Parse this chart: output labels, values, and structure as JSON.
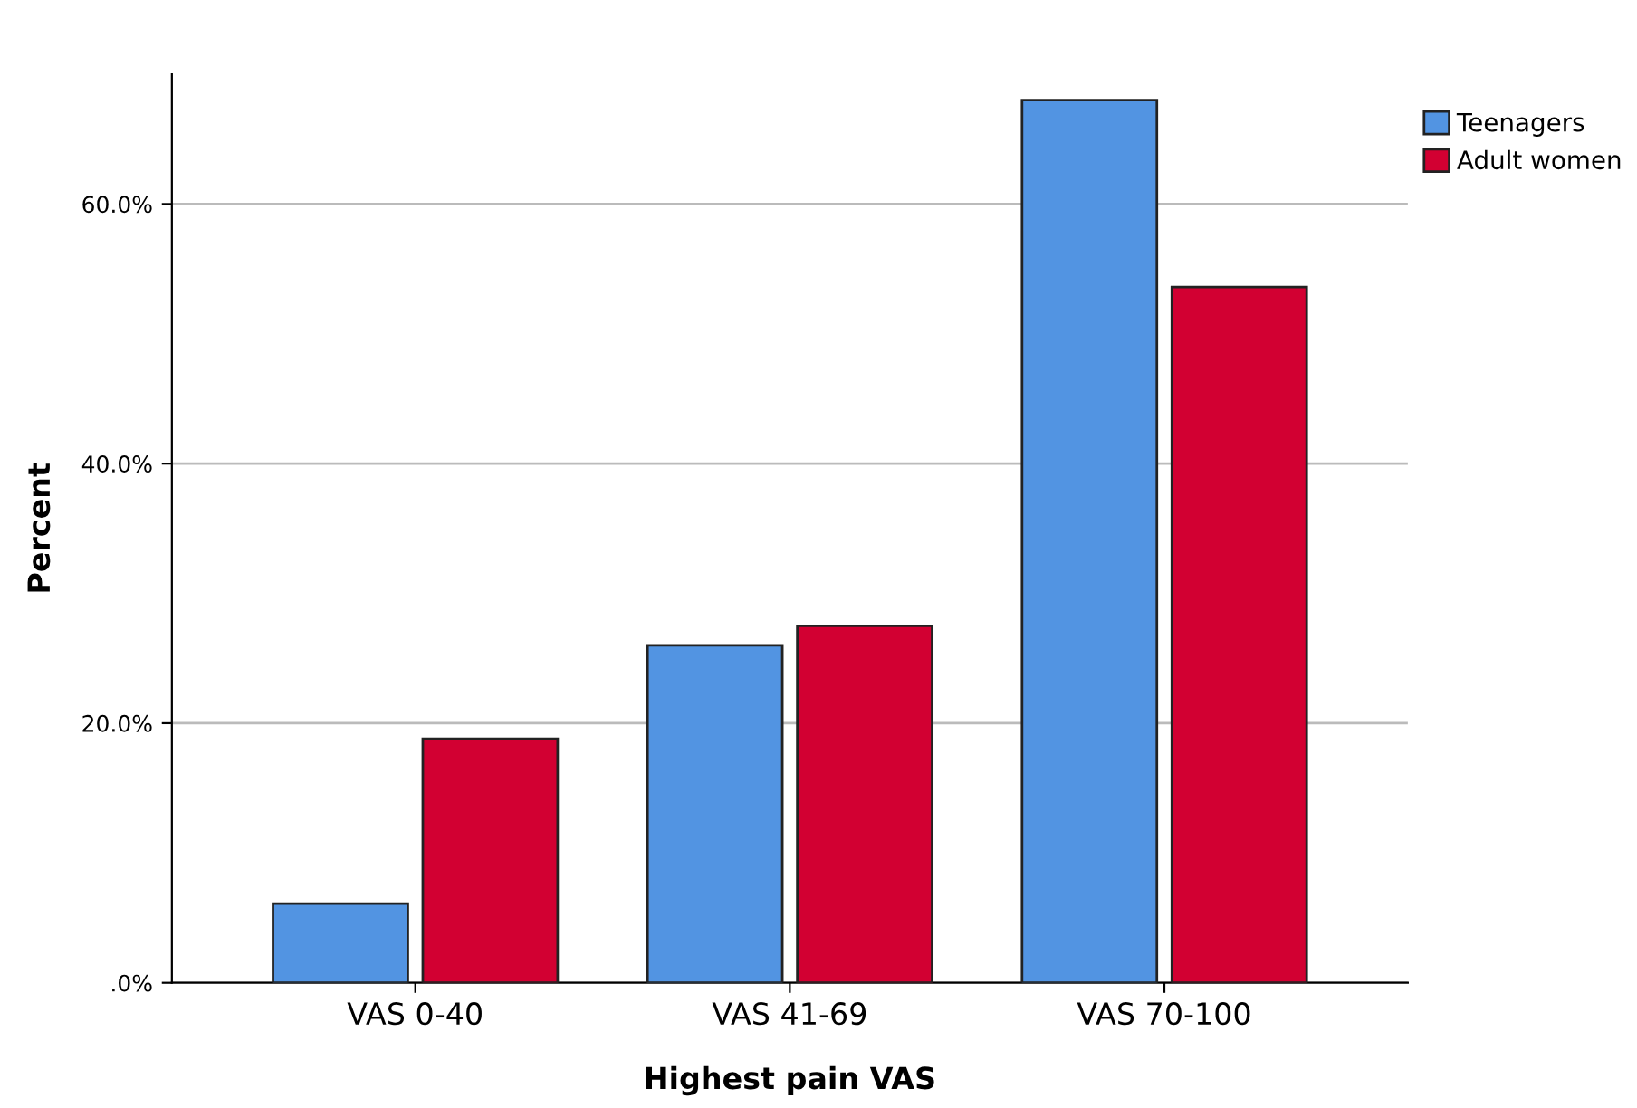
{
  "chart_data": {
    "type": "bar",
    "xlabel": "Highest pain VAS",
    "ylabel": "Percent",
    "categories": [
      "VAS 0-40",
      "VAS 41-69",
      "VAS 70-100"
    ],
    "series": [
      {
        "name": "Teenagers",
        "color": "#5294e2",
        "values": [
          6.1,
          26.0,
          68.0
        ]
      },
      {
        "name": "Adult women",
        "color": "#d20032",
        "values": [
          18.8,
          27.5,
          53.6
        ]
      }
    ],
    "ylim": [
      0,
      70
    ],
    "yticks": [
      {
        "value": 0,
        "label": ".0%"
      },
      {
        "value": 20,
        "label": "20.0%"
      },
      {
        "value": 40,
        "label": "40.0%"
      },
      {
        "value": 60,
        "label": "60.0%"
      }
    ],
    "grid": "y",
    "legend": "top right"
  }
}
